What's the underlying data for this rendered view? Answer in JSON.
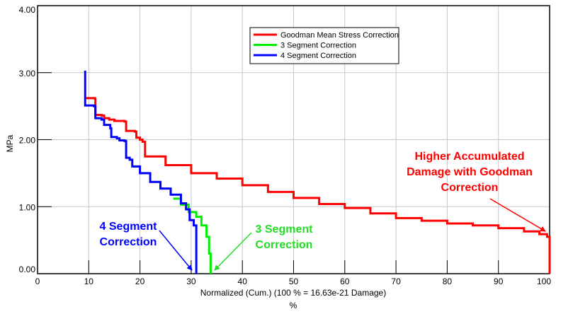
{
  "chart_data": {
    "type": "line",
    "xlabel": "Normalized (Cum.) (100 % = 16.63e-21 Damage)",
    "xunit": "%",
    "ylabel": "MPa",
    "xlim": [
      0,
      100
    ],
    "ylim": [
      0,
      4
    ],
    "grid": true,
    "legend_position": "top-center",
    "x_ticks": [
      "0",
      "10",
      "20",
      "30",
      "40",
      "50",
      "60",
      "70",
      "80",
      "90",
      "100"
    ],
    "y_ticks": [
      "0.00",
      "1.00",
      "2.00",
      "3.00",
      "4.00"
    ],
    "series": [
      {
        "name": "Goodman Mean Stress Correction",
        "color": "#ff0000",
        "points": [
          [
            9.5,
            2.62
          ],
          [
            11.2,
            2.61
          ],
          [
            11.3,
            2.37
          ],
          [
            12.5,
            2.36
          ],
          [
            13,
            2.32
          ],
          [
            14,
            2.3
          ],
          [
            15,
            2.28
          ],
          [
            17,
            2.27
          ],
          [
            17.3,
            2.13
          ],
          [
            19,
            2.12
          ],
          [
            19.3,
            2.03
          ],
          [
            20,
            2.0
          ],
          [
            20.5,
            1.97
          ],
          [
            21,
            1.75
          ],
          [
            25,
            1.62
          ],
          [
            30,
            1.5
          ],
          [
            35,
            1.42
          ],
          [
            40,
            1.32
          ],
          [
            45,
            1.22
          ],
          [
            50,
            1.13
          ],
          [
            55,
            1.04
          ],
          [
            60,
            0.98
          ],
          [
            65,
            0.9
          ],
          [
            70,
            0.83
          ],
          [
            75,
            0.79
          ],
          [
            80,
            0.75
          ],
          [
            85,
            0.72
          ],
          [
            90,
            0.68
          ],
          [
            95,
            0.63
          ],
          [
            98,
            0.59
          ],
          [
            99.5,
            0.55
          ],
          [
            100,
            0.45
          ],
          [
            100,
            0.0
          ]
        ]
      },
      {
        "name": "3 Segment Correction",
        "color": "#00ee00",
        "points": [
          [
            26.5,
            1.12
          ],
          [
            28,
            1.03
          ],
          [
            29.5,
            0.92
          ],
          [
            31,
            0.85
          ],
          [
            32,
            0.72
          ],
          [
            33,
            0.55
          ],
          [
            33.5,
            0.3
          ],
          [
            33.8,
            0.1
          ],
          [
            33.8,
            0.0
          ]
        ]
      },
      {
        "name": "4 Segment Correction",
        "color": "#0000ff",
        "points": [
          [
            9.3,
            3.03
          ],
          [
            9.3,
            2.51
          ],
          [
            11,
            2.5
          ],
          [
            11.3,
            2.32
          ],
          [
            12.5,
            2.3
          ],
          [
            13,
            2.22
          ],
          [
            14.2,
            2.17
          ],
          [
            14.4,
            2.04
          ],
          [
            15.5,
            2.02
          ],
          [
            16,
            1.99
          ],
          [
            17,
            1.98
          ],
          [
            17.3,
            1.73
          ],
          [
            18,
            1.7
          ],
          [
            18.5,
            1.6
          ],
          [
            20,
            1.5
          ],
          [
            22,
            1.37
          ],
          [
            24,
            1.27
          ],
          [
            26,
            1.18
          ],
          [
            28,
            1.05
          ],
          [
            29,
            0.96
          ],
          [
            29.7,
            0.8
          ],
          [
            30.5,
            0.72
          ],
          [
            31,
            0.45
          ],
          [
            31,
            0.0
          ]
        ]
      }
    ],
    "annotations": [
      {
        "lines": [
          "4 Segment",
          "Correction"
        ],
        "color": "#0000ff"
      },
      {
        "lines": [
          "3 Segment",
          "Correction"
        ],
        "color": "#22dd22"
      },
      {
        "lines": [
          "Higher Accumulated",
          "Damage with Goodman",
          "Correction"
        ],
        "color": "#ff0000"
      }
    ]
  }
}
